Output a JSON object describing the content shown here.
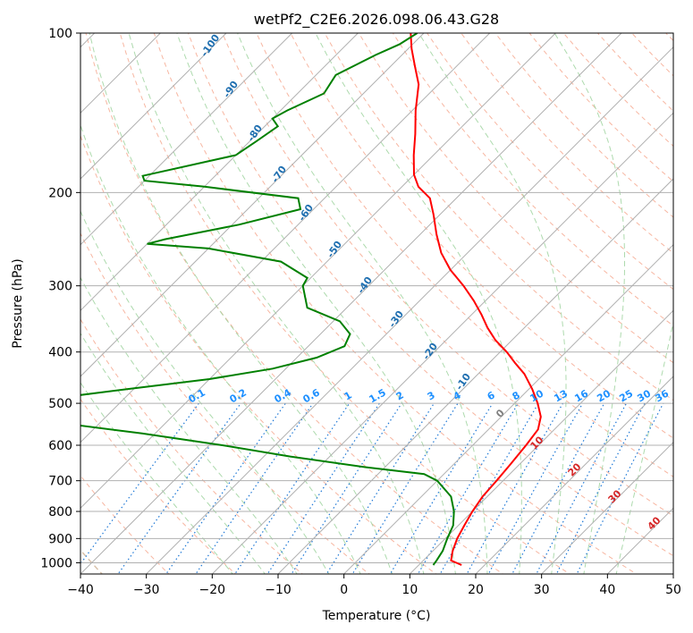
{
  "chart_data": {
    "type": "line",
    "title": "wetPf2_C2E6.2026.098.06.43.G28",
    "xlabel": "Temperature (°C)",
    "ylabel": "Pressure (hPa)",
    "xlim": [
      -40,
      50
    ],
    "ylim": [
      1050,
      100
    ],
    "y_scale": "log",
    "grid": true,
    "skew_t": true,
    "x_ticks": [
      -40,
      -30,
      -20,
      -10,
      0,
      10,
      20,
      30,
      40,
      50
    ],
    "y_ticks": [
      1000,
      900,
      800,
      700,
      600,
      500,
      400,
      300,
      200,
      100
    ],
    "series": [
      {
        "color": "#ff0000",
        "points": [
          [
            1010,
            16.5
          ],
          [
            990,
            14.2
          ],
          [
            950,
            13.0
          ],
          [
            900,
            11.8
          ],
          [
            850,
            10.9
          ],
          [
            800,
            10.0
          ],
          [
            750,
            9.3
          ],
          [
            700,
            9.0
          ],
          [
            650,
            8.6
          ],
          [
            600,
            8.1
          ],
          [
            560,
            7.5
          ],
          [
            530,
            6.0
          ],
          [
            500,
            3.5
          ],
          [
            470,
            0.5
          ],
          [
            440,
            -3.0
          ],
          [
            420,
            -6.0
          ],
          [
            400,
            -9.0
          ],
          [
            380,
            -12.5
          ],
          [
            360,
            -15.6
          ],
          [
            340,
            -18.5
          ],
          [
            320,
            -21.8
          ],
          [
            300,
            -25.6
          ],
          [
            280,
            -30.0
          ],
          [
            260,
            -34.0
          ],
          [
            240,
            -37.5
          ],
          [
            220,
            -41.0
          ],
          [
            205,
            -44.0
          ],
          [
            195,
            -47.5
          ],
          [
            185,
            -50.0
          ],
          [
            170,
            -53.0
          ],
          [
            155,
            -56.0
          ],
          [
            140,
            -59.5
          ],
          [
            125,
            -63.0
          ],
          [
            115,
            -66.5
          ],
          [
            107,
            -69.5
          ],
          [
            100,
            -72.0
          ]
        ]
      },
      {
        "color": "#008000",
        "points": [
          [
            1010,
            12.2
          ],
          [
            990,
            12.0
          ],
          [
            950,
            11.5
          ],
          [
            900,
            10.3
          ],
          [
            850,
            9.2
          ],
          [
            800,
            7.2
          ],
          [
            750,
            4.5
          ],
          [
            700,
            0.0
          ],
          [
            680,
            -3.0
          ],
          [
            660,
            -13.0
          ],
          [
            630,
            -26.0
          ],
          [
            600,
            -38.0
          ],
          [
            570,
            -52.0
          ],
          [
            550,
            -63.0
          ],
          [
            510,
            -72.0
          ],
          [
            500,
            -76.0
          ],
          [
            490,
            -71.0
          ],
          [
            470,
            -61.0
          ],
          [
            450,
            -50.0
          ],
          [
            430,
            -42.0
          ],
          [
            410,
            -37.0
          ],
          [
            390,
            -34.5
          ],
          [
            370,
            -35.5
          ],
          [
            350,
            -39.0
          ],
          [
            330,
            -46.0
          ],
          [
            300,
            -50.0
          ],
          [
            290,
            -50.5
          ],
          [
            270,
            -57.0
          ],
          [
            255,
            -70.0
          ],
          [
            250,
            -80.0
          ],
          [
            245,
            -78.0
          ],
          [
            230,
            -69.0
          ],
          [
            215,
            -62.0
          ],
          [
            205,
            -64.0
          ],
          [
            195,
            -80.0
          ],
          [
            190,
            -90.0
          ],
          [
            186,
            -91.0
          ],
          [
            170,
            -80.0
          ],
          [
            160,
            -79.0
          ],
          [
            150,
            -78.0
          ],
          [
            145,
            -80.0
          ],
          [
            140,
            -79.0
          ],
          [
            130,
            -76.0
          ],
          [
            120,
            -77.0
          ],
          [
            110,
            -74.0
          ],
          [
            105,
            -72.0
          ],
          [
            100,
            -71.0
          ]
        ]
      }
    ],
    "dry_adiabat_labels": [
      "-100",
      "-90",
      "-80",
      "-70",
      "-60",
      "-50",
      "-40",
      "-30",
      "-20",
      "-10"
    ],
    "mixing_ratio_labels": [
      "0.1",
      "0.2",
      "0.4",
      "0.6",
      "1",
      "1.5",
      "2",
      "3",
      "4",
      "6",
      "8",
      "10",
      "13",
      "16",
      "20",
      "25",
      "30",
      "36"
    ],
    "moist_adiabat_labels": [
      "0",
      "10",
      "20",
      "30",
      "40"
    ]
  }
}
